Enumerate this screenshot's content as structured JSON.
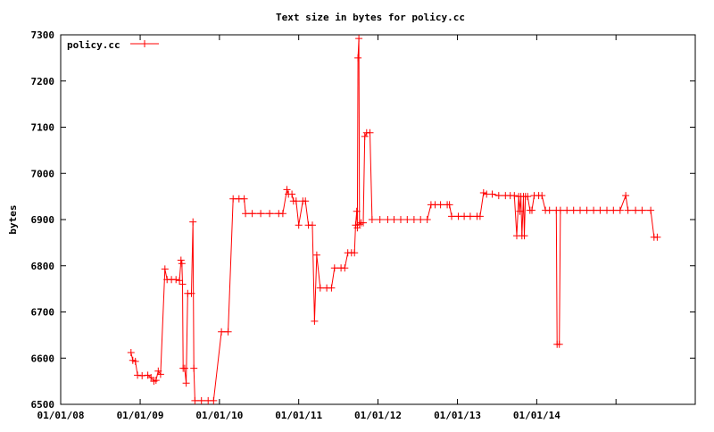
{
  "chart_data": {
    "type": "line",
    "title": "Text size in bytes for policy.cc",
    "xlabel": "",
    "ylabel": "bytes",
    "ylim": [
      6500,
      7300
    ],
    "yticks": [
      6500,
      6600,
      6700,
      6800,
      6900,
      7000,
      7100,
      7200,
      7300
    ],
    "xlim": [
      "2008-01-01",
      "2016-01-01"
    ],
    "xticks": [
      "01/01/08",
      "01/01/09",
      "01/01/10",
      "01/01/11",
      "01/01/12",
      "01/01/13",
      "01/01/14"
    ],
    "grid": false,
    "legend_position": "top-left",
    "series": [
      {
        "name": "policy.cc",
        "color": "#ff0000",
        "marker": "plus",
        "points": [
          [
            "2008-11-20",
            6612
          ],
          [
            "2008-11-28",
            6595
          ],
          [
            "2008-12-10",
            6593
          ],
          [
            "2008-12-20",
            6563
          ],
          [
            "2009-01-10",
            6562
          ],
          [
            "2009-02-05",
            6563
          ],
          [
            "2009-02-20",
            6558
          ],
          [
            "2009-03-05",
            6550
          ],
          [
            "2009-03-15",
            6552
          ],
          [
            "2009-03-25",
            6572
          ],
          [
            "2009-04-05",
            6565
          ],
          [
            "2009-04-25",
            6793
          ],
          [
            "2009-05-05",
            6770
          ],
          [
            "2009-05-25",
            6770
          ],
          [
            "2009-06-15",
            6770
          ],
          [
            "2009-07-01",
            6768
          ],
          [
            "2009-07-08",
            6812
          ],
          [
            "2009-07-12",
            6805
          ],
          [
            "2009-07-15",
            6760
          ],
          [
            "2009-07-18",
            6578
          ],
          [
            "2009-07-25",
            6578
          ],
          [
            "2009-08-01",
            6546
          ],
          [
            "2009-08-08",
            6740
          ],
          [
            "2009-08-25",
            6740
          ],
          [
            "2009-09-01",
            6895
          ],
          [
            "2009-09-05",
            6578
          ],
          [
            "2009-09-10",
            6508
          ],
          [
            "2009-10-10",
            6508
          ],
          [
            "2009-11-10",
            6508
          ],
          [
            "2009-12-05",
            6508
          ],
          [
            "2010-01-10",
            6657
          ],
          [
            "2010-02-10",
            6657
          ],
          [
            "2010-03-05",
            6945
          ],
          [
            "2010-04-01",
            6945
          ],
          [
            "2010-04-25",
            6945
          ],
          [
            "2010-05-01",
            6913
          ],
          [
            "2010-06-01",
            6913
          ],
          [
            "2010-07-10",
            6913
          ],
          [
            "2010-08-20",
            6913
          ],
          [
            "2010-10-01",
            6913
          ],
          [
            "2010-10-20",
            6913
          ],
          [
            "2010-11-08",
            6965
          ],
          [
            "2010-11-15",
            6955
          ],
          [
            "2010-12-01",
            6955
          ],
          [
            "2010-12-08",
            6940
          ],
          [
            "2010-12-20",
            6940
          ],
          [
            "2011-01-01",
            6888
          ],
          [
            "2011-01-20",
            6940
          ],
          [
            "2011-02-01",
            6940
          ],
          [
            "2011-02-15",
            6888
          ],
          [
            "2011-03-05",
            6888
          ],
          [
            "2011-03-15",
            6680
          ],
          [
            "2011-03-25",
            6823
          ],
          [
            "2011-04-10",
            6752
          ],
          [
            "2011-05-10",
            6752
          ],
          [
            "2011-06-01",
            6752
          ],
          [
            "2011-06-15",
            6795
          ],
          [
            "2011-07-15",
            6795
          ],
          [
            "2011-08-01",
            6795
          ],
          [
            "2011-08-15",
            6828
          ],
          [
            "2011-09-01",
            6828
          ],
          [
            "2011-09-15",
            6828
          ],
          [
            "2011-09-20",
            6888
          ],
          [
            "2011-09-25",
            6918
          ],
          [
            "2011-09-28",
            6882
          ],
          [
            "2011-10-01",
            7250
          ],
          [
            "2011-10-05",
            7292
          ],
          [
            "2011-10-08",
            6890
          ],
          [
            "2011-10-15",
            6893
          ],
          [
            "2011-10-25",
            6893
          ],
          [
            "2011-11-01",
            7080
          ],
          [
            "2011-11-10",
            7088
          ],
          [
            "2011-11-25",
            7088
          ],
          [
            "2011-12-05",
            6900
          ],
          [
            "2012-01-10",
            6900
          ],
          [
            "2012-02-15",
            6900
          ],
          [
            "2012-03-15",
            6900
          ],
          [
            "2012-04-15",
            6900
          ],
          [
            "2012-05-15",
            6900
          ],
          [
            "2012-06-15",
            6900
          ],
          [
            "2012-07-15",
            6900
          ],
          [
            "2012-08-15",
            6900
          ],
          [
            "2012-09-01",
            6932
          ],
          [
            "2012-09-20",
            6932
          ],
          [
            "2012-10-15",
            6932
          ],
          [
            "2012-11-15",
            6932
          ],
          [
            "2012-11-25",
            6932
          ],
          [
            "2012-12-05",
            6907
          ],
          [
            "2013-01-05",
            6907
          ],
          [
            "2013-02-01",
            6907
          ],
          [
            "2013-03-01",
            6907
          ],
          [
            "2013-04-01",
            6907
          ],
          [
            "2013-04-15",
            6907
          ],
          [
            "2013-05-01",
            6958
          ],
          [
            "2013-05-15",
            6955
          ],
          [
            "2013-06-10",
            6955
          ],
          [
            "2013-07-10",
            6952
          ],
          [
            "2013-08-10",
            6952
          ],
          [
            "2013-09-01",
            6952
          ],
          [
            "2013-09-20",
            6952
          ],
          [
            "2013-10-01",
            6865
          ],
          [
            "2013-10-10",
            6950
          ],
          [
            "2013-10-15",
            6918
          ],
          [
            "2013-10-20",
            6950
          ],
          [
            "2013-10-25",
            6865
          ],
          [
            "2013-11-01",
            6950
          ],
          [
            "2013-11-05",
            6865
          ],
          [
            "2013-11-10",
            6950
          ],
          [
            "2013-11-20",
            6950
          ],
          [
            "2013-12-01",
            6920
          ],
          [
            "2013-12-10",
            6920
          ],
          [
            "2013-12-20",
            6952
          ],
          [
            "2014-01-10",
            6952
          ],
          [
            "2014-01-25",
            6952
          ],
          [
            "2014-02-10",
            6920
          ],
          [
            "2014-03-01",
            6920
          ],
          [
            "2014-04-01",
            6920
          ],
          [
            "2014-04-05",
            6630
          ],
          [
            "2014-04-15",
            6630
          ],
          [
            "2014-04-20",
            6920
          ],
          [
            "2014-05-20",
            6920
          ],
          [
            "2014-06-20",
            6920
          ],
          [
            "2014-07-20",
            6920
          ],
          [
            "2014-08-20",
            6920
          ],
          [
            "2014-09-20",
            6920
          ],
          [
            "2014-10-20",
            6920
          ],
          [
            "2014-11-20",
            6920
          ],
          [
            "2014-12-20",
            6920
          ],
          [
            "2015-01-20",
            6920
          ],
          [
            "2015-02-15",
            6952
          ],
          [
            "2015-02-25",
            6920
          ],
          [
            "2015-04-01",
            6920
          ],
          [
            "2015-05-01",
            6920
          ],
          [
            "2015-06-10",
            6920
          ],
          [
            "2015-06-25",
            6862
          ],
          [
            "2015-07-10",
            6862
          ]
        ]
      }
    ]
  }
}
